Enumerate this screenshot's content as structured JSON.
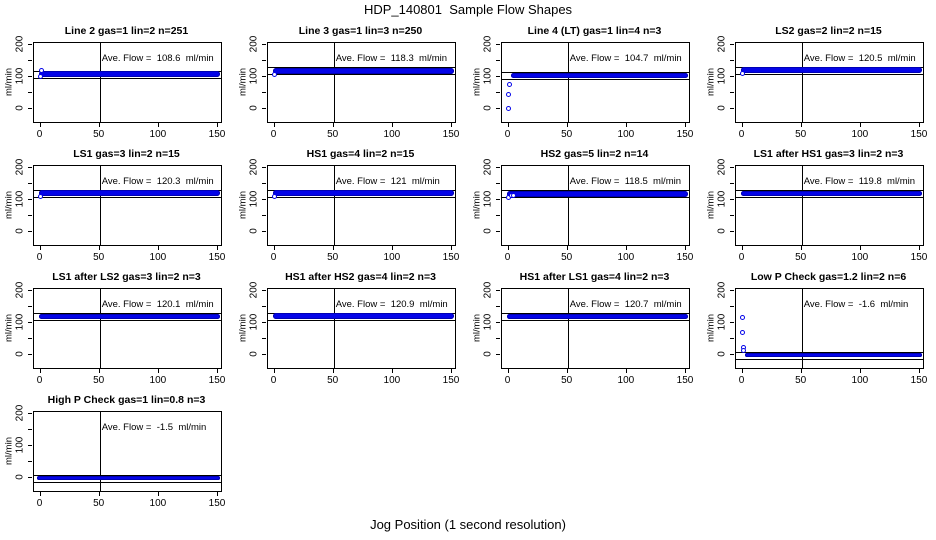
{
  "header": {
    "title": "HDP_140801  Sample Flow Shapes"
  },
  "footer": {
    "xlabel": "Jog Position (1 second resolution)"
  },
  "chart_data": {
    "type": "scatter",
    "title": "HDP_140801  Sample Flow Shapes",
    "xlabel": "Jog Position (1 second resolution)",
    "ylabel": "ml/min",
    "layout": "4x4 grid, 13 panels",
    "x_ticks": [
      0,
      50,
      100,
      150
    ],
    "y_ticks": [
      0,
      50,
      100,
      150,
      200
    ],
    "y_labeled_ticks": [
      0,
      100,
      200
    ],
    "x_axis_range": [
      -5.5,
      152.5
    ],
    "y_axis_range": [
      -42,
      206
    ],
    "vline_x": 50,
    "tolerance": 11,
    "grid": false,
    "point_color": "#0404e8",
    "annotation_prefix": "Ave. Flow =",
    "annotation_suffix": "ml/min",
    "plots": [
      {
        "title": "Line 2 gas=1 lin=2 n=251",
        "ave_flow": 108.6,
        "ave_flow_display": "108.6",
        "band": {
          "x0": 0,
          "x1": 150,
          "y": 108.6,
          "h": 20
        },
        "points": [
          {
            "x": 1,
            "y": 119
          },
          {
            "x": 0,
            "y": 100
          }
        ]
      },
      {
        "title": "Line 3 gas=1 lin=3 n=250",
        "ave_flow": 118.3,
        "ave_flow_display": "118.3",
        "band": {
          "x0": 0,
          "x1": 150,
          "y": 118.3,
          "h": 20
        },
        "points": [
          {
            "x": 0,
            "y": 107
          }
        ]
      },
      {
        "title": "Line 4 (LT) gas=1 lin=4 n=3",
        "ave_flow": 104.7,
        "ave_flow_display": "104.7",
        "band": {
          "x0": 4,
          "x1": 150,
          "y": 104.7,
          "h": 16
        },
        "points": [
          {
            "x": 0,
            "y": 0
          },
          {
            "x": 0,
            "y": 42
          },
          {
            "x": 1,
            "y": 75
          }
        ]
      },
      {
        "title": "LS2 gas=2 lin=2 n=15",
        "ave_flow": 120.5,
        "ave_flow_display": "120.5",
        "band": {
          "x0": 0,
          "x1": 150,
          "y": 120.5,
          "h": 18
        },
        "points": [
          {
            "x": 0,
            "y": 108
          }
        ]
      },
      {
        "title": "LS1 gas=3 lin=2 n=15",
        "ave_flow": 120.3,
        "ave_flow_display": "120.3",
        "band": {
          "x0": 0,
          "x1": 150,
          "y": 120.3,
          "h": 18
        },
        "points": [
          {
            "x": 0,
            "y": 109
          }
        ]
      },
      {
        "title": "HS1 gas=4 lin=2 n=15",
        "ave_flow": 121,
        "ave_flow_display": "121",
        "band": {
          "x0": 0,
          "x1": 150,
          "y": 121,
          "h": 18
        },
        "points": [
          {
            "x": 0,
            "y": 109
          }
        ]
      },
      {
        "title": "HS2 gas=5 lin=2 n=14",
        "ave_flow": 118.5,
        "ave_flow_display": "118.5",
        "band": {
          "x0": 0,
          "x1": 150,
          "y": 118.5,
          "h": 18
        },
        "points": [
          {
            "x": 0,
            "y": 107
          },
          {
            "x": 3,
            "y": 111
          },
          {
            "x": 5,
            "y": 112
          }
        ]
      },
      {
        "title": "LS1 after HS1 gas=3 lin=2 n=3",
        "ave_flow": 119.8,
        "ave_flow_display": "119.8",
        "band": {
          "x0": 0,
          "x1": 150,
          "y": 119.8,
          "h": 17
        },
        "points": []
      },
      {
        "title": "LS1 after LS2 gas=3 lin=2 n=3",
        "ave_flow": 120.1,
        "ave_flow_display": "120.1",
        "band": {
          "x0": 0,
          "x1": 150,
          "y": 120.1,
          "h": 17
        },
        "points": []
      },
      {
        "title": "HS1 after HS2 gas=4 lin=2 n=3",
        "ave_flow": 120.9,
        "ave_flow_display": "120.9",
        "band": {
          "x0": 0,
          "x1": 150,
          "y": 120.9,
          "h": 17
        },
        "points": []
      },
      {
        "title": "HS1 after LS1 gas=4 lin=2 n=3",
        "ave_flow": 120.7,
        "ave_flow_display": "120.7",
        "band": {
          "x0": 0,
          "x1": 150,
          "y": 120.7,
          "h": 17
        },
        "points": []
      },
      {
        "title": "Low P Check gas=1.2 lin=2 n=6",
        "ave_flow": -1.6,
        "ave_flow_display": "-1.6",
        "band": {
          "x0": 4,
          "x1": 150,
          "y": -1.6,
          "h": 15
        },
        "points": [
          {
            "x": 0,
            "y": 115
          },
          {
            "x": 0,
            "y": 67
          },
          {
            "x": 1,
            "y": 22
          },
          {
            "x": 1,
            "y": 10
          }
        ]
      },
      {
        "title": "High P Check gas=1 lin=0.8 n=3",
        "ave_flow": -1.5,
        "ave_flow_display": "-1.5",
        "band": {
          "x0": -1,
          "x1": 150,
          "y": -1.5,
          "h": 15
        },
        "points": []
      }
    ]
  }
}
